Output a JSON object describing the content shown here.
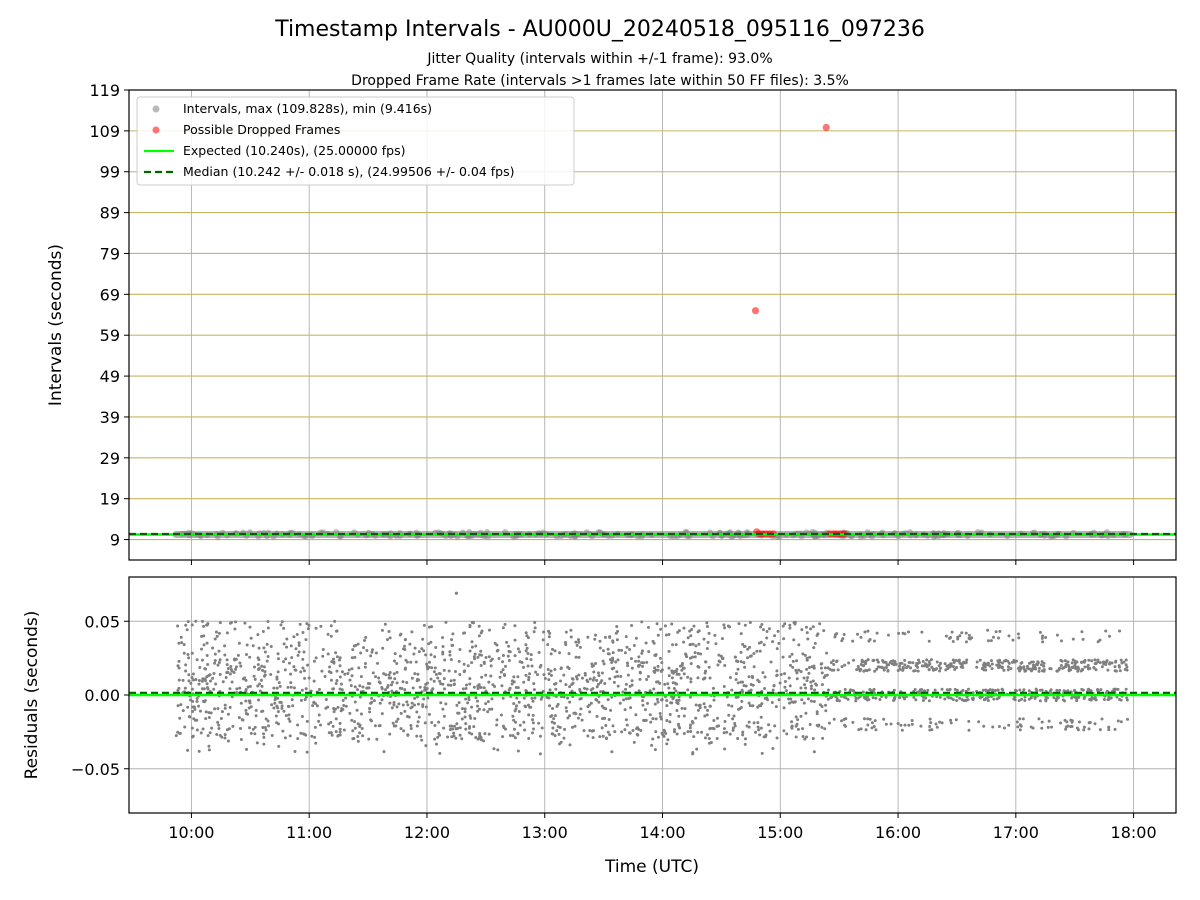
{
  "figure": {
    "title": "Timestamp Intervals - AU000U_20240518_095116_097236",
    "subtitle_line1": "Jitter Quality (intervals within +/-1 frame): 93.0%",
    "subtitle_line2": "Dropped Frame Rate (intervals >1 frames late within 50 FF files): 3.5%"
  },
  "colors": {
    "intervals": "#808080",
    "dropped": "#ff0000",
    "expected": "#00ff00",
    "median": "#006400",
    "hgrid_top": "#c8b560",
    "grid": "#b0b0b0"
  },
  "chart_data": [
    {
      "type": "scatter",
      "ylabel": "Intervals (seconds)",
      "y_ticks": [
        9,
        19,
        29,
        39,
        49,
        59,
        69,
        79,
        89,
        99,
        109,
        119
      ],
      "ylim": [
        4,
        119
      ],
      "x_ticks": [
        "10:00",
        "11:00",
        "12:00",
        "13:00",
        "14:00",
        "15:00",
        "16:00",
        "17:00",
        "18:00"
      ],
      "xlim_hours": [
        9.47,
        18.36
      ],
      "grid": "on",
      "legend_position": "top-left",
      "legend": [
        "Intervals, max (109.828s), min (9.416s)",
        "Possible Dropped Frames",
        "Expected (10.240s), (25.00000 fps)",
        "Median (10.242 +/- 0.018 s), (24.99506 +/- 0.04 fps)"
      ],
      "intervals_time_range_hours": [
        9.87,
        17.97
      ],
      "intervals_typical_value": 10.24,
      "expected_value": 10.24,
      "median_value": 10.242,
      "dropped_frames": [
        {
          "time": 14.79,
          "value": 65.0
        },
        {
          "time": 15.39,
          "value": 109.828
        },
        {
          "time": 14.8,
          "value": 10.9
        },
        {
          "time": 14.82,
          "value": 10.4
        },
        {
          "time": 14.85,
          "value": 10.4
        },
        {
          "time": 14.88,
          "value": 10.4
        },
        {
          "time": 14.91,
          "value": 10.4
        },
        {
          "time": 14.94,
          "value": 10.4
        },
        {
          "time": 15.42,
          "value": 10.4
        },
        {
          "time": 15.45,
          "value": 10.4
        },
        {
          "time": 15.48,
          "value": 10.4
        },
        {
          "time": 15.51,
          "value": 10.4
        },
        {
          "time": 15.54,
          "value": 10.4
        }
      ]
    },
    {
      "type": "scatter",
      "xlabel": "Time (UTC)",
      "ylabel": "Residuals (seconds)",
      "y_ticks": [
        "0.05",
        "0.00",
        "−0.05"
      ],
      "y_tick_values": [
        0.05,
        0.0,
        -0.05
      ],
      "ylim": [
        -0.08,
        0.08
      ],
      "x_ticks": [
        "10:00",
        "11:00",
        "12:00",
        "13:00",
        "14:00",
        "15:00",
        "16:00",
        "17:00",
        "18:00"
      ],
      "xlim_hours": [
        9.47,
        18.36
      ],
      "grid": "on",
      "expected_residual": 0.0,
      "median_residual": 0.0015,
      "residual_bands": [
        -0.02,
        0.0,
        0.02,
        0.04
      ],
      "residual_time_range_hours": [
        9.87,
        17.97
      ],
      "residual_max": 0.069,
      "residual_min": -0.041
    }
  ]
}
